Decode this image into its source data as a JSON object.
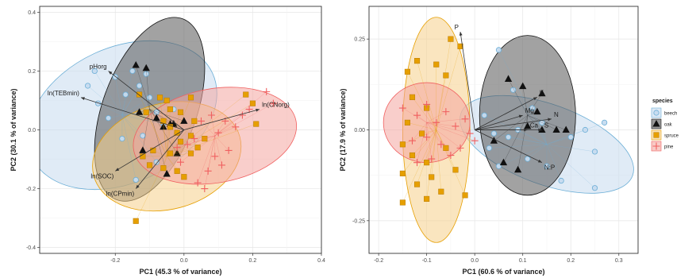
{
  "chart_data": [
    {
      "type": "scatter",
      "xlabel": "PC1 (45.3 % of variance)",
      "ylabel": "PC2 (30.1 % of variance)",
      "xlim": [
        -0.42,
        0.4
      ],
      "ylim": [
        -0.42,
        0.42
      ],
      "xticks": [
        "-0.2",
        "0.0",
        "0.2",
        "0.4"
      ],
      "xtick_values": [
        -0.2,
        0.0,
        0.2,
        0.4
      ],
      "yticks": [
        "0.4",
        "0.2",
        "0.0",
        "-0.2",
        "-0.4"
      ],
      "ytick_values": [
        0.4,
        0.2,
        0.0,
        -0.2,
        -0.4
      ],
      "grid": true,
      "series": [
        {
          "name": "beech",
          "ellipse": {
            "cx": -0.18,
            "cy": 0.05,
            "rx": 0.29,
            "ry": 0.23,
            "angle": -25
          },
          "points": [
            [
              -0.26,
              0.2
            ],
            [
              -0.28,
              0.15
            ],
            [
              -0.25,
              0.09
            ],
            [
              -0.22,
              0.04
            ],
            [
              -0.2,
              0.18
            ],
            [
              -0.17,
              0.12
            ],
            [
              -0.15,
              0.2
            ],
            [
              -0.13,
              0.15
            ],
            [
              -0.1,
              0.11
            ],
            [
              -0.08,
              0.06
            ],
            [
              -0.06,
              0.02
            ],
            [
              -0.12,
              -0.02
            ],
            [
              -0.08,
              -0.11
            ],
            [
              -0.03,
              0.07
            ],
            [
              -0.11,
              0.19
            ],
            [
              -0.18,
              -0.03
            ],
            [
              -0.14,
              -0.17
            ]
          ]
        },
        {
          "name": "oak",
          "ellipse": {
            "cx": -0.1,
            "cy": 0.07,
            "rx": 0.28,
            "ry": 0.16,
            "angle": -70
          },
          "points": [
            [
              -0.14,
              0.22
            ],
            [
              -0.11,
              0.21
            ],
            [
              -0.13,
              0.06
            ],
            [
              -0.08,
              0.04
            ],
            [
              -0.04,
              0.02
            ],
            [
              -0.06,
              0.01
            ],
            [
              -0.03,
              0.02
            ],
            [
              0.0,
              0.03
            ],
            [
              -0.12,
              -0.07
            ],
            [
              -0.05,
              -0.15
            ],
            [
              -0.02,
              -0.08
            ]
          ]
        },
        {
          "name": "spruce",
          "ellipse": {
            "cx": -0.05,
            "cy": -0.09,
            "rx": 0.22,
            "ry": 0.18,
            "angle": -15
          },
          "points": [
            [
              -0.13,
              0.12
            ],
            [
              -0.11,
              0.06
            ],
            [
              -0.07,
              0.11
            ],
            [
              -0.05,
              0.1
            ],
            [
              -0.04,
              0.07
            ],
            [
              -0.06,
              0.03
            ],
            [
              -0.04,
              0.01
            ],
            [
              -0.02,
              -0.01
            ],
            [
              -0.01,
              -0.04
            ],
            [
              0.02,
              -0.02
            ],
            [
              0.04,
              -0.06
            ],
            [
              0.06,
              -0.03
            ],
            [
              0.02,
              -0.08
            ],
            [
              -0.04,
              -0.08
            ],
            [
              -0.09,
              -0.07
            ],
            [
              -0.12,
              -0.09
            ],
            [
              -0.1,
              -0.12
            ],
            [
              -0.06,
              -0.13
            ],
            [
              -0.02,
              -0.14
            ],
            [
              0.0,
              -0.16
            ],
            [
              -0.14,
              -0.31
            ],
            [
              0.03,
              0.03
            ],
            [
              -0.01,
              0.06
            ],
            [
              0.02,
              0.11
            ],
            [
              0.18,
              0.12
            ],
            [
              0.2,
              0.09
            ],
            [
              0.21,
              0.02
            ]
          ]
        },
        {
          "name": "pine",
          "ellipse": {
            "cx": 0.09,
            "cy": -0.02,
            "rx": 0.24,
            "ry": 0.16,
            "angle": -10
          },
          "points": [
            [
              0.24,
              0.13
            ],
            [
              0.26,
              0.09
            ],
            [
              0.19,
              0.07
            ],
            [
              0.17,
              0.05
            ],
            [
              0.12,
              0.03
            ],
            [
              0.1,
              -0.01
            ],
            [
              0.08,
              0.05
            ],
            [
              0.05,
              0.03
            ],
            [
              0.03,
              -0.03
            ],
            [
              0.01,
              -0.05
            ],
            [
              -0.02,
              -0.06
            ],
            [
              0.09,
              -0.09
            ],
            [
              0.11,
              -0.12
            ],
            [
              0.13,
              -0.07
            ],
            [
              0.15,
              0.01
            ],
            [
              0.07,
              -0.14
            ],
            [
              0.04,
              -0.18
            ],
            [
              -0.01,
              -0.11
            ],
            [
              0.06,
              -0.2
            ]
          ]
        }
      ],
      "loadings": [
        {
          "label": "pHorg",
          "x": -0.22,
          "y": 0.2
        },
        {
          "label": "ln(TEBmin)",
          "x": -0.3,
          "y": 0.11
        },
        {
          "label": "ln(CNorg)",
          "x": 0.22,
          "y": 0.07
        },
        {
          "label": "ln(SOC)",
          "x": -0.2,
          "y": -0.14
        },
        {
          "label": "ln(CPmin)",
          "x": -0.14,
          "y": -0.2
        }
      ]
    },
    {
      "type": "scatter",
      "xlabel": "PC1 (60.6 % of variance)",
      "ylabel": "PC2 (17.9 % of variance)",
      "xlim": [
        -0.22,
        0.34
      ],
      "ylim": [
        -0.34,
        0.34
      ],
      "xticks": [
        "-0.2",
        "-0.1",
        "0.0",
        "0.1",
        "0.2",
        "0.3"
      ],
      "xtick_values": [
        -0.2,
        -0.1,
        0.0,
        0.1,
        0.2,
        0.3
      ],
      "yticks": [
        "0.25",
        "0.00",
        "-0.25"
      ],
      "ytick_values": [
        0.25,
        0.0,
        -0.25
      ],
      "grid": true,
      "series": [
        {
          "name": "beech",
          "ellipse": {
            "cx": 0.15,
            "cy": -0.04,
            "rx": 0.19,
            "ry": 0.11,
            "angle": 20
          },
          "points": [
            [
              0.05,
              0.22
            ],
            [
              0.08,
              0.11
            ],
            [
              0.02,
              0.04
            ],
            [
              0.04,
              -0.01
            ],
            [
              0.07,
              -0.02
            ],
            [
              0.09,
              0.0
            ],
            [
              0.12,
              0.06
            ],
            [
              0.14,
              0.02
            ],
            [
              0.2,
              -0.02
            ],
            [
              0.23,
              0.0
            ],
            [
              0.25,
              -0.06
            ],
            [
              0.27,
              0.02
            ],
            [
              0.15,
              -0.1
            ],
            [
              0.18,
              -0.14
            ],
            [
              0.11,
              -0.08
            ],
            [
              0.03,
              -0.05
            ],
            [
              0.05,
              -0.1
            ],
            [
              0.25,
              -0.16
            ]
          ]
        },
        {
          "name": "oak",
          "ellipse": {
            "cx": 0.11,
            "cy": 0.04,
            "rx": 0.1,
            "ry": 0.22,
            "angle": 0
          },
          "points": [
            [
              0.07,
              0.14
            ],
            [
              0.1,
              0.12
            ],
            [
              0.14,
              0.1
            ],
            [
              0.13,
              0.05
            ],
            [
              0.11,
              0.01
            ],
            [
              0.14,
              0.0
            ],
            [
              0.17,
              0.0
            ],
            [
              0.19,
              0.0
            ],
            [
              0.06,
              -0.09
            ],
            [
              0.09,
              -0.11
            ],
            [
              0.04,
              -0.03
            ]
          ]
        },
        {
          "name": "spruce",
          "ellipse": {
            "cx": -0.08,
            "cy": 0.0,
            "rx": 0.07,
            "ry": 0.31,
            "angle": 0
          },
          "points": [
            [
              -0.05,
              0.25
            ],
            [
              -0.03,
              0.23
            ],
            [
              -0.12,
              0.19
            ],
            [
              -0.14,
              0.16
            ],
            [
              -0.08,
              0.18
            ],
            [
              -0.06,
              0.15
            ],
            [
              -0.13,
              0.09
            ],
            [
              -0.1,
              0.06
            ],
            [
              -0.14,
              0.02
            ],
            [
              -0.11,
              -0.01
            ],
            [
              -0.15,
              -0.04
            ],
            [
              -0.13,
              -0.07
            ],
            [
              -0.1,
              -0.09
            ],
            [
              -0.15,
              -0.12
            ],
            [
              -0.12,
              -0.15
            ],
            [
              -0.09,
              -0.13
            ],
            [
              -0.07,
              -0.17
            ],
            [
              -0.1,
              -0.19
            ],
            [
              -0.15,
              -0.2
            ],
            [
              -0.06,
              -0.05
            ],
            [
              -0.04,
              -0.11
            ],
            [
              -0.02,
              -0.18
            ]
          ]
        },
        {
          "name": "pine",
          "ellipse": {
            "cx": -0.1,
            "cy": 0.02,
            "rx": 0.09,
            "ry": 0.11,
            "angle": 0
          },
          "points": [
            [
              -0.15,
              0.06
            ],
            [
              -0.12,
              0.04
            ],
            [
              -0.1,
              0.07
            ],
            [
              -0.08,
              0.02
            ],
            [
              -0.06,
              0.05
            ],
            [
              -0.04,
              0.01
            ],
            [
              -0.02,
              0.03
            ],
            [
              -0.01,
              -0.01
            ],
            [
              -0.13,
              -0.03
            ],
            [
              -0.1,
              -0.02
            ],
            [
              -0.07,
              -0.04
            ],
            [
              -0.05,
              -0.07
            ],
            [
              -0.09,
              -0.08
            ],
            [
              -0.12,
              -0.09
            ],
            [
              -0.03,
              -0.05
            ],
            [
              0.0,
              -0.03
            ]
          ]
        }
      ],
      "loadings": [
        {
          "label": "P",
          "x": -0.03,
          "y": 0.27
        },
        {
          "label": "K",
          "x": 0.13,
          "y": 0.09
        },
        {
          "label": "Mg",
          "x": 0.1,
          "y": 0.04
        },
        {
          "label": "N",
          "x": 0.16,
          "y": 0.03
        },
        {
          "label": "Ca",
          "x": 0.11,
          "y": 0.0
        },
        {
          "label": "S",
          "x": 0.14,
          "y": 0.0
        },
        {
          "label": "N:P",
          "x": 0.14,
          "y": -0.09
        }
      ]
    }
  ],
  "legend": {
    "title": "species",
    "entries": [
      {
        "label": "beech",
        "color": "#6BAED6",
        "fill": "#C6DBEF",
        "shape": "circle"
      },
      {
        "label": "oak",
        "color": "#111111",
        "fill": "#555555",
        "shape": "triangle"
      },
      {
        "label": "spruce",
        "color": "#E69F00",
        "fill": "#F5D08A",
        "shape": "square"
      },
      {
        "label": "pine",
        "color": "#F06060",
        "fill": "#F4A6A0",
        "shape": "plus"
      }
    ]
  }
}
